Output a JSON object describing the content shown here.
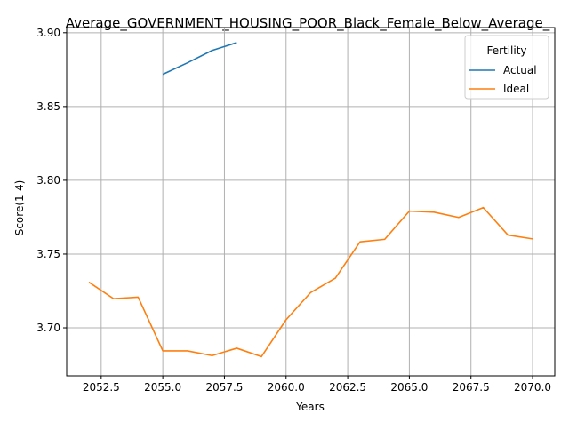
{
  "chart_data": {
    "type": "line",
    "title": "Average_GOVERNMENT_HOUSING_POOR_Black_Female_Below_Average_",
    "xlabel": "Years",
    "ylabel": "Score(1-4)",
    "xlim": [
      2051.1,
      2070.9
    ],
    "ylim": [
      3.6675,
      3.9035
    ],
    "x_ticks": [
      2052.5,
      2055.0,
      2057.5,
      2060.0,
      2062.5,
      2065.0,
      2067.5,
      2070.0
    ],
    "x_tick_labels": [
      "2052.5",
      "2055.0",
      "2057.5",
      "2060.0",
      "2062.5",
      "2065.0",
      "2067.5",
      "2070.0"
    ],
    "y_ticks": [
      3.7,
      3.75,
      3.8,
      3.85,
      3.9
    ],
    "y_tick_labels": [
      "3.70",
      "3.75",
      "3.80",
      "3.85",
      "3.90"
    ],
    "grid": true,
    "legend": {
      "title": "Fertility",
      "placement": "top-right"
    },
    "series": [
      {
        "name": "Actual",
        "color": "#1f77b4",
        "x": [
          2055,
          2056,
          2057,
          2058
        ],
        "values": [
          3.8718,
          3.8796,
          3.888,
          3.8933
        ]
      },
      {
        "name": "Ideal",
        "color": "#ff7f0e",
        "x": [
          2052,
          2053,
          2054,
          2055,
          2056,
          2057,
          2058,
          2059,
          2060,
          2061,
          2062,
          2063,
          2064,
          2065,
          2066,
          2067,
          2068,
          2069,
          2070
        ],
        "values": [
          3.731,
          3.7198,
          3.7208,
          3.6844,
          3.6844,
          3.6812,
          3.6862,
          3.6805,
          3.7055,
          3.724,
          3.7337,
          3.7583,
          3.76,
          3.7791,
          3.7784,
          3.7748,
          3.7815,
          3.7629,
          3.7603
        ]
      }
    ]
  }
}
